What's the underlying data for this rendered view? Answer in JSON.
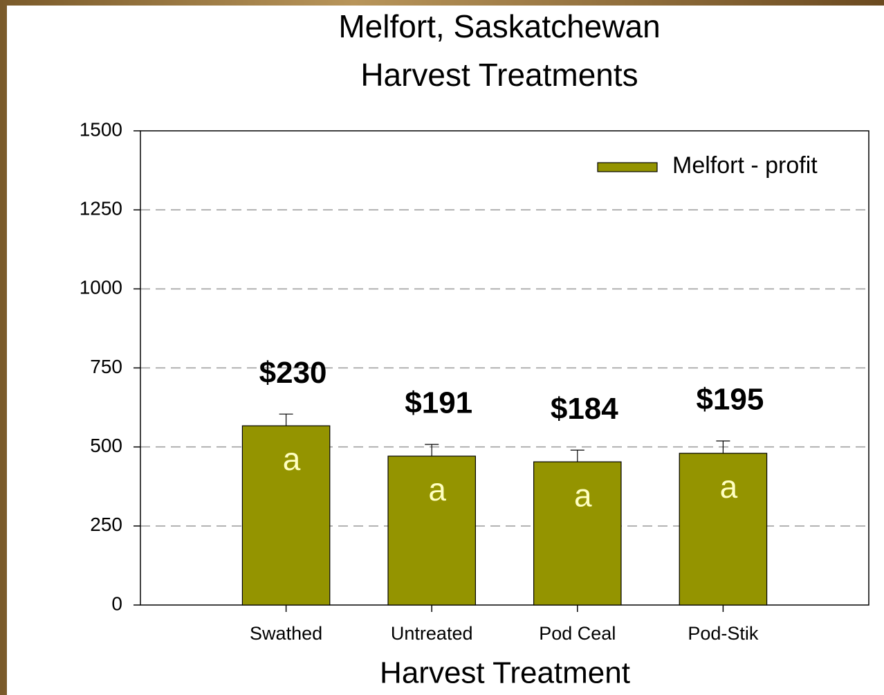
{
  "chart_data": {
    "type": "bar",
    "title": [
      "Melfort, Saskatchewan",
      "Harvest Treatments"
    ],
    "xlabel": "Harvest Treatment",
    "categories": [
      "Swathed",
      "Untreated",
      "Pod Ceal",
      "Pod-Stik"
    ],
    "series": [
      {
        "name": "Melfort - profit",
        "color": "#949400",
        "values": [
          567,
          471,
          453,
          480
        ],
        "errors": [
          37,
          37,
          37,
          39
        ]
      }
    ],
    "bar_labels": [
      "$230",
      "$191",
      "$184",
      "$195"
    ],
    "letters": [
      "a",
      "a",
      "a",
      "a"
    ],
    "ylim": [
      0,
      1500
    ],
    "yticks": [
      0,
      250,
      500,
      750,
      1000,
      1250,
      1500
    ],
    "grid": true,
    "legend": "upper right"
  }
}
